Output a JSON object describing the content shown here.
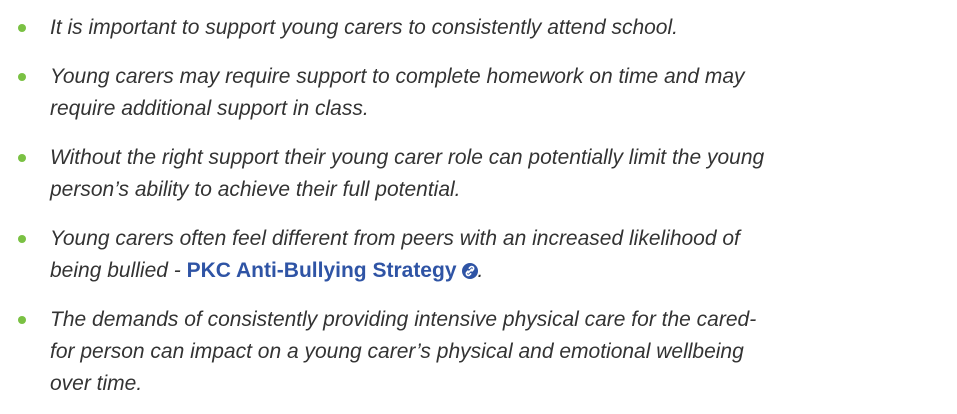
{
  "items": [
    {
      "lines": [
        "It is important to support young carers to consistently attend school."
      ]
    },
    {
      "lines": [
        "Young carers may require support to complete homework on time and may",
        "require additional support in class."
      ]
    },
    {
      "lines": [
        "Without the right support their young carer role can potentially limit the young",
        "person’s ability to achieve their full potential."
      ]
    },
    {
      "lines": [
        "Young carers often feel different from peers with an increased likelihood of",
        "being bullied - "
      ],
      "link": "PKC Anti-Bullying Strategy",
      "after": "."
    },
    {
      "lines": [
        "The demands of consistently providing intensive physical care for the cared-",
        "for person can impact on a young carer’s physical and emotional wellbeing",
        "over time."
      ]
    }
  ]
}
